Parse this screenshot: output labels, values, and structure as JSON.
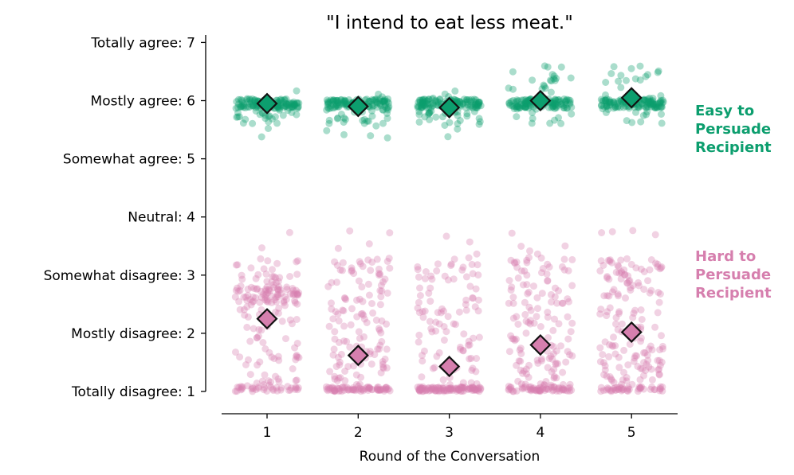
{
  "chart_data": {
    "type": "scatter",
    "title": "\"I intend to eat less meat.\"",
    "xlabel": "Round of the Conversation",
    "ylabel": "",
    "x": [
      1,
      2,
      3,
      4,
      5
    ],
    "xlim": [
      0.5,
      5.5
    ],
    "ylim": [
      0.8,
      7.2
    ],
    "y_ticks": [
      {
        "value": 7,
        "label": "Totally agree: 7"
      },
      {
        "value": 6,
        "label": "Mostly agree: 6"
      },
      {
        "value": 5,
        "label": "Somewhat agree: 5"
      },
      {
        "value": 4,
        "label": "Neutral: 4"
      },
      {
        "value": 3,
        "label": "Somewhat disagree: 3"
      },
      {
        "value": 2,
        "label": "Mostly disagree: 2"
      },
      {
        "value": 1,
        "label": "Totally disagree: 1"
      }
    ],
    "series": [
      {
        "name": "Easy to Persuade Recipient",
        "label_lines": [
          "Easy to",
          "Persuade",
          "Recipient"
        ],
        "color": "#0c9e6e",
        "means": [
          5.95,
          5.9,
          5.88,
          6.0,
          6.05
        ],
        "point_style": "jittered individual responses around the mean (approx. 150 per round)"
      },
      {
        "name": "Hard to Persuade Recipient",
        "label_lines": [
          "Hard to",
          "Persuade",
          "Recipient"
        ],
        "color": "#d67fae",
        "means": [
          2.25,
          1.62,
          1.43,
          1.8,
          2.02
        ],
        "point_style": "jittered individual responses spread between 1 and 3.5 (approx. 200 per round)"
      }
    ],
    "mean_marker": "diamond"
  }
}
